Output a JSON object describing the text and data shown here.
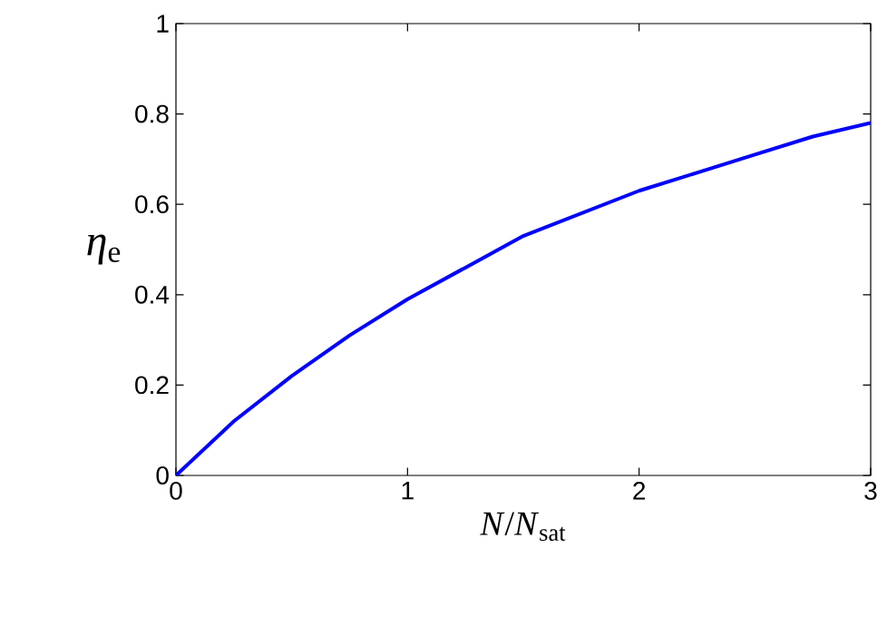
{
  "chart_data": {
    "type": "line",
    "xlabel": "*N*/*N*$_{sat}$",
    "ylabel": "*η*$_{e}$",
    "x": [
      0,
      0.25,
      0.5,
      0.75,
      1,
      1.25,
      1.5,
      1.75,
      2,
      2.25,
      2.5,
      2.75,
      3
    ],
    "series": [
      {
        "color": "#0000ff",
        "values": [
          0,
          0.12,
          0.22,
          0.31,
          0.39,
          0.46,
          0.53,
          0.58,
          0.63,
          0.67,
          0.71,
          0.75,
          0.78
        ]
      }
    ],
    "xlim": [
      0,
      3
    ],
    "ylim": [
      0,
      1
    ],
    "xticks": [
      0,
      1,
      2,
      3
    ],
    "yticks": [
      0,
      0.2,
      0.4,
      0.6,
      0.8,
      1
    ]
  }
}
